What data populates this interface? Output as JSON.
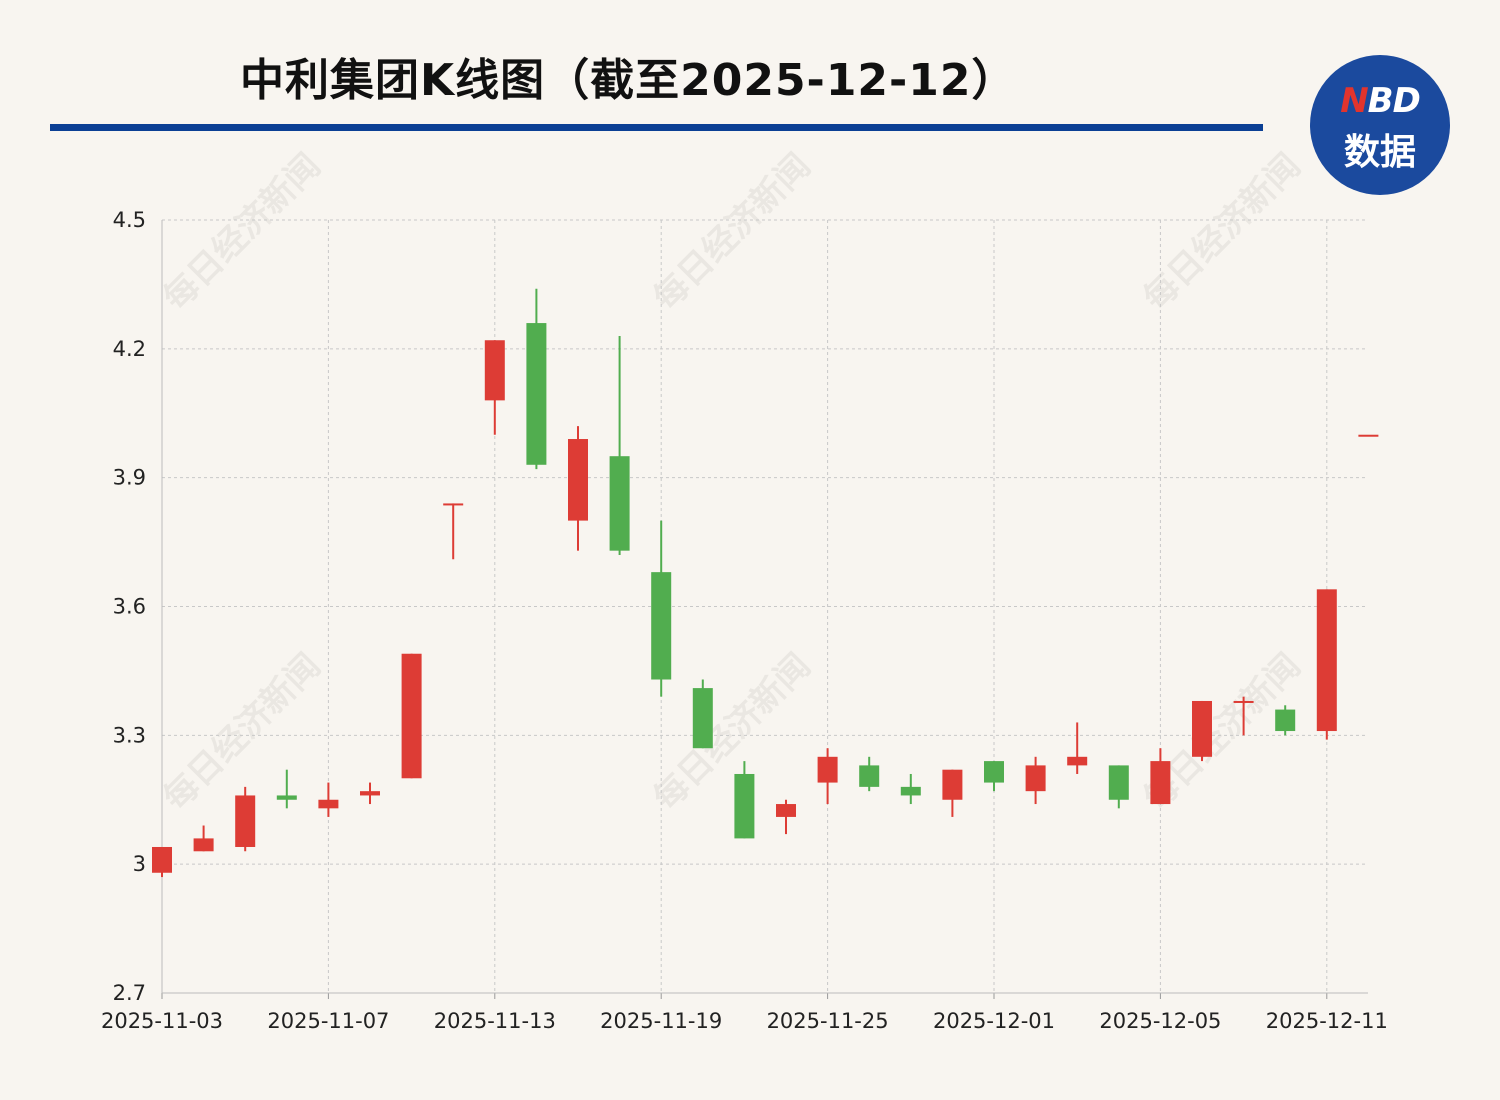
{
  "title": "中利集团K线图（截至2025-12-12）",
  "logo": {
    "text_top_n": "N",
    "text_top_rest": "BD",
    "text_bottom": "数据"
  },
  "watermark": "每日经济新闻",
  "colors": {
    "up": "#dd3c35",
    "down": "#51ad4f",
    "title_bar": "#0b3f94",
    "logo_bg": "#1b4a9e",
    "background": "#f8f5f0"
  },
  "chart_data": {
    "type": "candlestick",
    "title": "中利集团K线图（截至2025-12-12）",
    "ylim": [
      2.7,
      4.5
    ],
    "yticks": [
      "2.7",
      "3",
      "3.3",
      "3.6",
      "3.9",
      "4.2",
      "4.5"
    ],
    "xtick_labels": [
      "2025-11-03",
      "2025-11-07",
      "2025-11-13",
      "2025-11-19",
      "2025-11-25",
      "2025-12-01",
      "2025-12-05",
      "2025-12-11"
    ],
    "grid": true,
    "dates": [
      "2025-11-03",
      "2025-11-04",
      "2025-11-05",
      "2025-11-06",
      "2025-11-07",
      "2025-11-10",
      "2025-11-11",
      "2025-11-12",
      "2025-11-13",
      "2025-11-14",
      "2025-11-17",
      "2025-11-18",
      "2025-11-19",
      "2025-11-20",
      "2025-11-21",
      "2025-11-24",
      "2025-11-25",
      "2025-11-26",
      "2025-11-27",
      "2025-11-28",
      "2025-12-01",
      "2025-12-02",
      "2025-12-03",
      "2025-12-04",
      "2025-12-05",
      "2025-12-08",
      "2025-12-09",
      "2025-12-10",
      "2025-12-11",
      "2025-12-12"
    ],
    "ohlc": [
      [
        2.98,
        3.04,
        2.97,
        3.04
      ],
      [
        3.03,
        3.09,
        3.03,
        3.06
      ],
      [
        3.04,
        3.18,
        3.03,
        3.16
      ],
      [
        3.16,
        3.22,
        3.13,
        3.15
      ],
      [
        3.13,
        3.19,
        3.11,
        3.15
      ],
      [
        3.16,
        3.19,
        3.14,
        3.17
      ],
      [
        3.2,
        3.49,
        3.2,
        3.49
      ],
      [
        3.84,
        3.84,
        3.71,
        3.84
      ],
      [
        4.08,
        4.22,
        4.0,
        4.22
      ],
      [
        4.26,
        4.34,
        3.92,
        3.93
      ],
      [
        3.8,
        4.02,
        3.73,
        3.99
      ],
      [
        3.95,
        4.23,
        3.72,
        3.73
      ],
      [
        3.68,
        3.8,
        3.39,
        3.43
      ],
      [
        3.41,
        3.43,
        3.27,
        3.27
      ],
      [
        3.21,
        3.24,
        3.06,
        3.06
      ],
      [
        3.11,
        3.15,
        3.07,
        3.14
      ],
      [
        3.19,
        3.27,
        3.14,
        3.25
      ],
      [
        3.23,
        3.25,
        3.17,
        3.18
      ],
      [
        3.18,
        3.21,
        3.14,
        3.16
      ],
      [
        3.15,
        3.22,
        3.11,
        3.22
      ],
      [
        3.24,
        3.24,
        3.17,
        3.19
      ],
      [
        3.17,
        3.25,
        3.14,
        3.23
      ],
      [
        3.23,
        3.33,
        3.21,
        3.25
      ],
      [
        3.23,
        3.23,
        3.13,
        3.15
      ],
      [
        3.14,
        3.27,
        3.14,
        3.24
      ],
      [
        3.25,
        3.38,
        3.24,
        3.38
      ],
      [
        3.38,
        3.39,
        3.3,
        3.38
      ],
      [
        3.36,
        3.37,
        3.3,
        3.31
      ],
      [
        3.31,
        3.64,
        3.29,
        3.64
      ],
      [
        4.0,
        4.0,
        4.0,
        4.0
      ]
    ]
  }
}
